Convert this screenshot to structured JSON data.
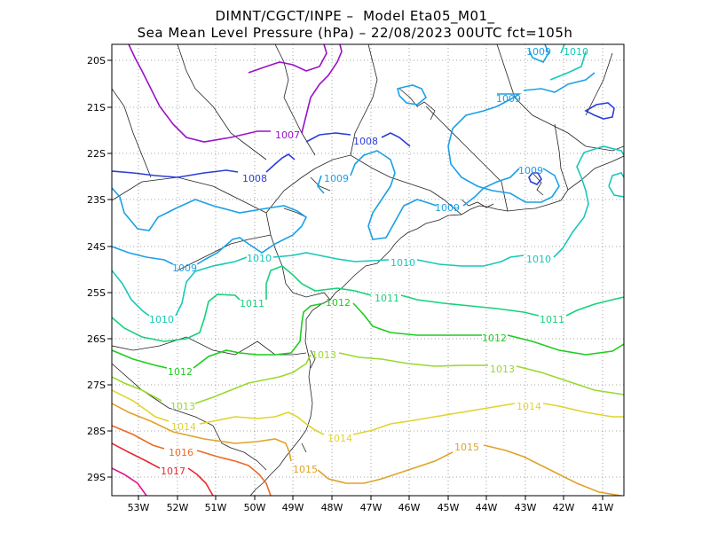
{
  "title": {
    "line1": "DIMNT/CGCT/INPE –  Model Eta05_M01_",
    "line2": "Sea Mean Level Pressure (hPa) – 22/08/2023 00UTC fct=105h"
  },
  "axes": {
    "lon_ticks": [
      "53W",
      "52W",
      "51W",
      "50W",
      "49W",
      "48W",
      "47W",
      "46W",
      "45W",
      "44W",
      "43W",
      "42W",
      "41W"
    ],
    "lat_ticks": [
      "20S",
      "21S",
      "22S",
      "23S",
      "24S",
      "25S",
      "26S",
      "27S",
      "28S",
      "29S"
    ],
    "lon_range": [
      -53.7,
      -40.5
    ],
    "lat_range": [
      -19.8,
      -29.4
    ],
    "grid": true
  },
  "isobars": [
    {
      "value": "1007",
      "color": "#9a12c8"
    },
    {
      "value": "1008",
      "color": "#2a3ed8"
    },
    {
      "value": "1009",
      "color": "#1ba0e6"
    },
    {
      "value": "1010",
      "color": "#18c8b8"
    },
    {
      "value": "1011",
      "color": "#16d27a"
    },
    {
      "value": "1012",
      "color": "#1ecc1e"
    },
    {
      "value": "1013",
      "color": "#9ad82c"
    },
    {
      "value": "1014",
      "color": "#e0d42c"
    },
    {
      "value": "1015",
      "color": "#e0a22a"
    },
    {
      "value": "1016",
      "color": "#ec6a26"
    },
    {
      "value": "1017",
      "color": "#e42a32"
    },
    {
      "value": "1018",
      "color": "#e0148c"
    }
  ],
  "contour_labels": [
    {
      "text": "1007",
      "color": "#9a12c8"
    },
    {
      "text": "1008",
      "color": "#2a3ed8"
    },
    {
      "text": "1008",
      "color": "#2a3ed8"
    },
    {
      "text": "1009",
      "color": "#1ba0e6"
    },
    {
      "text": "1009",
      "color": "#1ba0e6"
    },
    {
      "text": "1009",
      "color": "#1ba0e6"
    },
    {
      "text": "1009",
      "color": "#1ba0e6"
    },
    {
      "text": "1009",
      "color": "#1ba0e6"
    },
    {
      "text": "1009",
      "color": "#1ba0e6"
    },
    {
      "text": "1010",
      "color": "#18c8b8"
    },
    {
      "text": "1010",
      "color": "#18c8b8"
    },
    {
      "text": "1010",
      "color": "#18c8b8"
    },
    {
      "text": "1010",
      "color": "#18c8b8"
    },
    {
      "text": "1010",
      "color": "#18c8b8"
    },
    {
      "text": "1011",
      "color": "#16d27a"
    },
    {
      "text": "1011",
      "color": "#16d27a"
    },
    {
      "text": "1011",
      "color": "#16d27a"
    },
    {
      "text": "1012",
      "color": "#1ecc1e"
    },
    {
      "text": "1012",
      "color": "#1ecc1e"
    },
    {
      "text": "1012",
      "color": "#1ecc1e"
    },
    {
      "text": "1013",
      "color": "#9ad82c"
    },
    {
      "text": "1013",
      "color": "#9ad82c"
    },
    {
      "text": "1013",
      "color": "#9ad82c"
    },
    {
      "text": "1014",
      "color": "#e0d42c"
    },
    {
      "text": "1014",
      "color": "#e0d42c"
    },
    {
      "text": "1014",
      "color": "#e0d42c"
    },
    {
      "text": "1015",
      "color": "#e0a22a"
    },
    {
      "text": "1015",
      "color": "#e0a22a"
    },
    {
      "text": "1016",
      "color": "#ec6a26"
    },
    {
      "text": "1017",
      "color": "#e42a32"
    }
  ]
}
